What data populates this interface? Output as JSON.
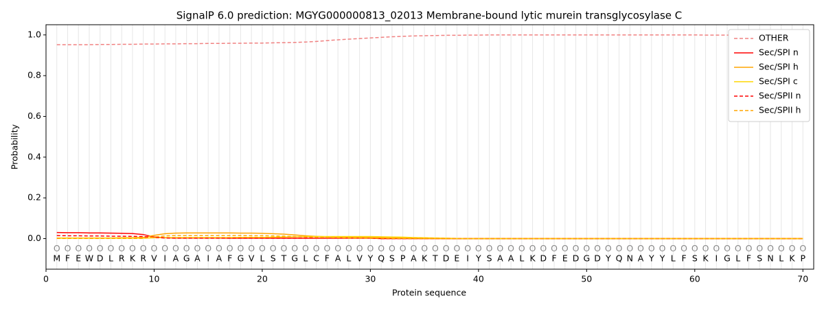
{
  "chart_data": {
    "type": "line",
    "title": "SignalP 6.0 prediction: MGYG000000813_02013 Membrane-bound lytic murein transglycosylase C",
    "xlabel": "Protein sequence",
    "ylabel": "Probability",
    "x": [
      1,
      2,
      3,
      4,
      5,
      6,
      7,
      8,
      9,
      10,
      11,
      12,
      13,
      14,
      15,
      16,
      17,
      18,
      19,
      20,
      21,
      22,
      23,
      24,
      25,
      26,
      27,
      28,
      29,
      30,
      31,
      32,
      33,
      34,
      35,
      36,
      37,
      38,
      39,
      40,
      41,
      42,
      43,
      44,
      45,
      46,
      47,
      48,
      49,
      50,
      51,
      52,
      53,
      54,
      55,
      56,
      57,
      58,
      59,
      60,
      61,
      62,
      63,
      64,
      65,
      66,
      67,
      68,
      69,
      70
    ],
    "sequence": [
      "M",
      "F",
      "E",
      "W",
      "D",
      "L",
      "R",
      "K",
      "R",
      "V",
      "I",
      "A",
      "G",
      "A",
      "I",
      "A",
      "F",
      "G",
      "V",
      "L",
      "S",
      "T",
      "G",
      "L",
      "C",
      "F",
      "A",
      "L",
      "V",
      "Y",
      "Q",
      "S",
      "P",
      "A",
      "K",
      "T",
      "D",
      "E",
      "I",
      "Y",
      "S",
      "A",
      "A",
      "L",
      "K",
      "D",
      "F",
      "E",
      "D",
      "G",
      "D",
      "Y",
      "Q",
      "N",
      "A",
      "Y",
      "Y",
      "L",
      "F",
      "S",
      "K",
      "I",
      "G",
      "L",
      "F",
      "S",
      "N",
      "L",
      "K",
      "P"
    ],
    "labels": [
      "O",
      "O",
      "O",
      "O",
      "O",
      "O",
      "O",
      "O",
      "O",
      "O",
      "O",
      "O",
      "O",
      "O",
      "O",
      "O",
      "O",
      "O",
      "O",
      "O",
      "O",
      "O",
      "O",
      "O",
      "O",
      "O",
      "O",
      "O",
      "O",
      "O",
      "O",
      "O",
      "O",
      "O",
      "O",
      "O",
      "O",
      "O",
      "O",
      "O",
      "O",
      "O",
      "O",
      "O",
      "O",
      "O",
      "O",
      "O",
      "O",
      "O",
      "O",
      "O",
      "O",
      "O",
      "O",
      "O",
      "O",
      "O",
      "O",
      "O",
      "O",
      "O",
      "O",
      "O",
      "O",
      "O",
      "O",
      "O",
      "O",
      "O"
    ],
    "series": [
      {
        "name": "OTHER",
        "color": "#f08080",
        "dashed": true,
        "values": [
          0.952,
          0.952,
          0.952,
          0.952,
          0.953,
          0.953,
          0.954,
          0.954,
          0.955,
          0.955,
          0.956,
          0.956,
          0.957,
          0.957,
          0.958,
          0.958,
          0.959,
          0.959,
          0.96,
          0.96,
          0.961,
          0.962,
          0.963,
          0.965,
          0.968,
          0.972,
          0.976,
          0.979,
          0.982,
          0.985,
          0.988,
          0.991,
          0.993,
          0.995,
          0.996,
          0.997,
          0.998,
          0.998,
          0.999,
          0.999,
          1.0,
          1.0,
          1.0,
          1.0,
          1.0,
          1.0,
          1.0,
          1.0,
          1.0,
          1.0,
          1.0,
          1.0,
          1.0,
          1.0,
          1.0,
          1.0,
          1.0,
          1.0,
          1.0,
          1.0,
          0.999,
          0.999,
          0.999,
          0.999,
          0.998,
          0.998,
          0.998,
          0.998,
          0.998,
          0.998
        ]
      },
      {
        "name": "Sec/SPI n",
        "color": "#ff0000",
        "dashed": false,
        "values": [
          0.03,
          0.029,
          0.029,
          0.028,
          0.028,
          0.027,
          0.026,
          0.025,
          0.02,
          0.008,
          0.004,
          0.003,
          0.003,
          0.003,
          0.003,
          0.003,
          0.002,
          0.002,
          0.002,
          0.002,
          0.002,
          0.002,
          0.002,
          0.002,
          0.002,
          0.002,
          0.002,
          0.002,
          0.002,
          0.002,
          0,
          0,
          0,
          0,
          0,
          0,
          0,
          0,
          0,
          0,
          0,
          0,
          0,
          0,
          0,
          0,
          0,
          0,
          0,
          0,
          0,
          0,
          0,
          0,
          0,
          0,
          0,
          0,
          0,
          0,
          0,
          0,
          0,
          0,
          0,
          0,
          0,
          0,
          0,
          0
        ]
      },
      {
        "name": "Sec/SPI h",
        "color": "#ffa500",
        "dashed": false,
        "values": [
          0.003,
          0.003,
          0.003,
          0.003,
          0.003,
          0.003,
          0.004,
          0.004,
          0.006,
          0.016,
          0.024,
          0.027,
          0.028,
          0.028,
          0.028,
          0.028,
          0.028,
          0.027,
          0.027,
          0.026,
          0.024,
          0.022,
          0.018,
          0.014,
          0.011,
          0.009,
          0.008,
          0.007,
          0.006,
          0.005,
          0.004,
          0.003,
          0.002,
          0.002,
          0.001,
          0.001,
          0,
          0,
          0,
          0,
          0,
          0,
          0,
          0,
          0,
          0,
          0,
          0,
          0,
          0,
          0,
          0,
          0,
          0,
          0,
          0,
          0,
          0,
          0,
          0,
          0,
          0,
          0,
          0,
          0,
          0,
          0,
          0,
          0,
          0
        ]
      },
      {
        "name": "Sec/SPI c",
        "color": "#ffd700",
        "dashed": false,
        "values": [
          0.002,
          0.002,
          0.002,
          0.002,
          0.002,
          0.002,
          0.002,
          0.002,
          0.002,
          0.004,
          0.005,
          0.005,
          0.005,
          0.005,
          0.005,
          0.005,
          0.005,
          0.006,
          0.006,
          0.006,
          0.007,
          0.008,
          0.009,
          0.01,
          0.01,
          0.01,
          0.01,
          0.01,
          0.01,
          0.01,
          0.009,
          0.008,
          0.007,
          0.005,
          0.004,
          0.003,
          0.002,
          0.001,
          0,
          0,
          0,
          0,
          0,
          0,
          0,
          0,
          0,
          0,
          0,
          0,
          0,
          0,
          0,
          0,
          0,
          0,
          0,
          0,
          0,
          0,
          0,
          0,
          0,
          0,
          0,
          0,
          0,
          0,
          0,
          0
        ]
      },
      {
        "name": "Sec/SPII n",
        "color": "#ff0000",
        "dashed": true,
        "values": [
          0.015,
          0.014,
          0.014,
          0.013,
          0.013,
          0.012,
          0.012,
          0.011,
          0.01,
          0.006,
          0.003,
          0.002,
          0.002,
          0.002,
          0.002,
          0.002,
          0.002,
          0.002,
          0.002,
          0.002,
          0.002,
          0.002,
          0.002,
          0.002,
          0.002,
          0.002,
          0.002,
          0.002,
          0.002,
          0.002,
          0,
          0,
          0,
          0,
          0,
          0,
          0,
          0,
          0,
          0,
          0,
          0,
          0,
          0,
          0,
          0,
          0,
          0,
          0,
          0,
          0,
          0,
          0,
          0,
          0,
          0,
          0,
          0,
          0,
          0,
          0,
          0,
          0,
          0,
          0,
          0,
          0,
          0,
          0,
          0
        ]
      },
      {
        "name": "Sec/SPII h",
        "color": "#ffa500",
        "dashed": true,
        "values": [
          0.001,
          0.001,
          0.001,
          0.001,
          0.001,
          0.001,
          0.001,
          0.001,
          0.001,
          0.008,
          0.013,
          0.015,
          0.015,
          0.015,
          0.015,
          0.015,
          0.015,
          0.015,
          0.014,
          0.014,
          0.013,
          0.012,
          0.01,
          0.008,
          0.006,
          0.005,
          0.004,
          0.003,
          0.003,
          0.002,
          0.002,
          0.001,
          0.001,
          0,
          0,
          0,
          0,
          0,
          0,
          0,
          0,
          0,
          0,
          0,
          0,
          0,
          0,
          0,
          0,
          0,
          0,
          0,
          0,
          0,
          0,
          0,
          0,
          0,
          0,
          0,
          0,
          0,
          0,
          0,
          0,
          0,
          0,
          0,
          0,
          0
        ]
      }
    ],
    "xlim": [
      0,
      71
    ],
    "ylim": [
      -0.15,
      1.05
    ],
    "xticks": [
      0,
      10,
      20,
      30,
      40,
      50,
      60,
      70
    ],
    "yticks": [
      {
        "value": 0,
        "label": "0.0"
      },
      0.2,
      0.4,
      0.6,
      0.8,
      {
        "value": 1,
        "label": "1.0"
      }
    ],
    "legend": "upper right",
    "grid": true
  }
}
